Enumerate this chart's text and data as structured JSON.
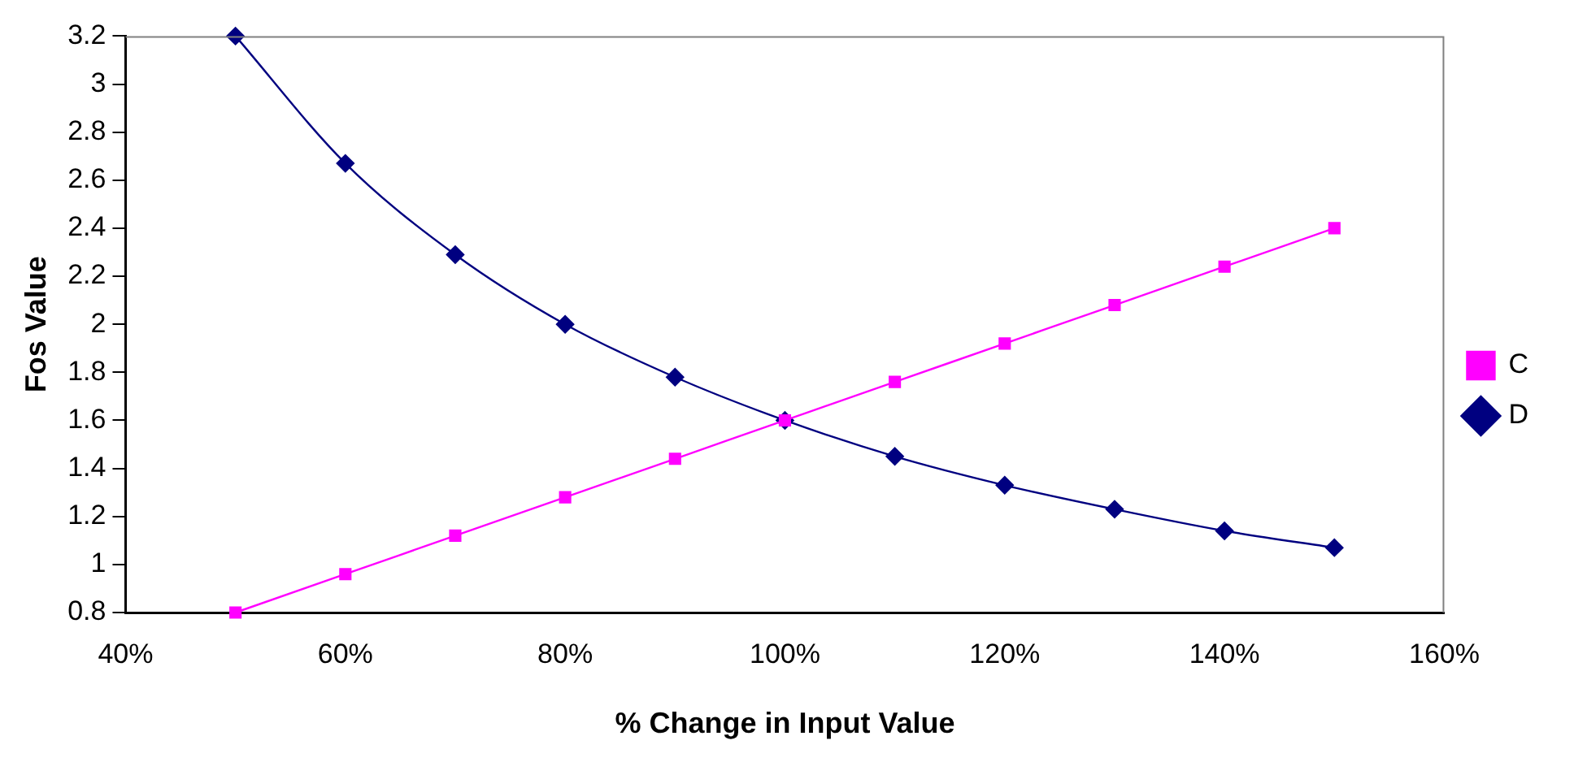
{
  "chart_data": {
    "type": "line",
    "xlabel": "% Change in Input Value",
    "ylabel": "Fos Value",
    "x": [
      50,
      60,
      70,
      80,
      90,
      100,
      110,
      120,
      130,
      140,
      150
    ],
    "series": [
      {
        "name": "D",
        "color": "#000080",
        "marker": "diamond",
        "values": [
          3.2,
          2.67,
          2.29,
          2.0,
          1.78,
          1.6,
          1.45,
          1.33,
          1.23,
          1.14,
          1.07
        ]
      },
      {
        "name": "C",
        "color": "#ff00ff",
        "marker": "square",
        "values": [
          0.8,
          0.96,
          1.12,
          1.28,
          1.44,
          1.6,
          1.76,
          1.92,
          2.08,
          2.24,
          2.4
        ]
      }
    ],
    "xlim": [
      40,
      160
    ],
    "xticks": [
      {
        "value": 40,
        "label": "40%"
      },
      {
        "value": 60,
        "label": "60%"
      },
      {
        "value": 80,
        "label": "80%"
      },
      {
        "value": 100,
        "label": "100%"
      },
      {
        "value": 120,
        "label": "120%"
      },
      {
        "value": 140,
        "label": "140%"
      },
      {
        "value": 160,
        "label": "160%"
      }
    ],
    "ylim": [
      0.8,
      3.2
    ],
    "yticks": [
      0.8,
      1,
      1.2,
      1.4,
      1.6,
      1.8,
      2,
      2.2,
      2.4,
      2.6,
      2.8,
      3,
      3.2
    ],
    "grid": false,
    "legend": "right",
    "line_style": "solid"
  }
}
